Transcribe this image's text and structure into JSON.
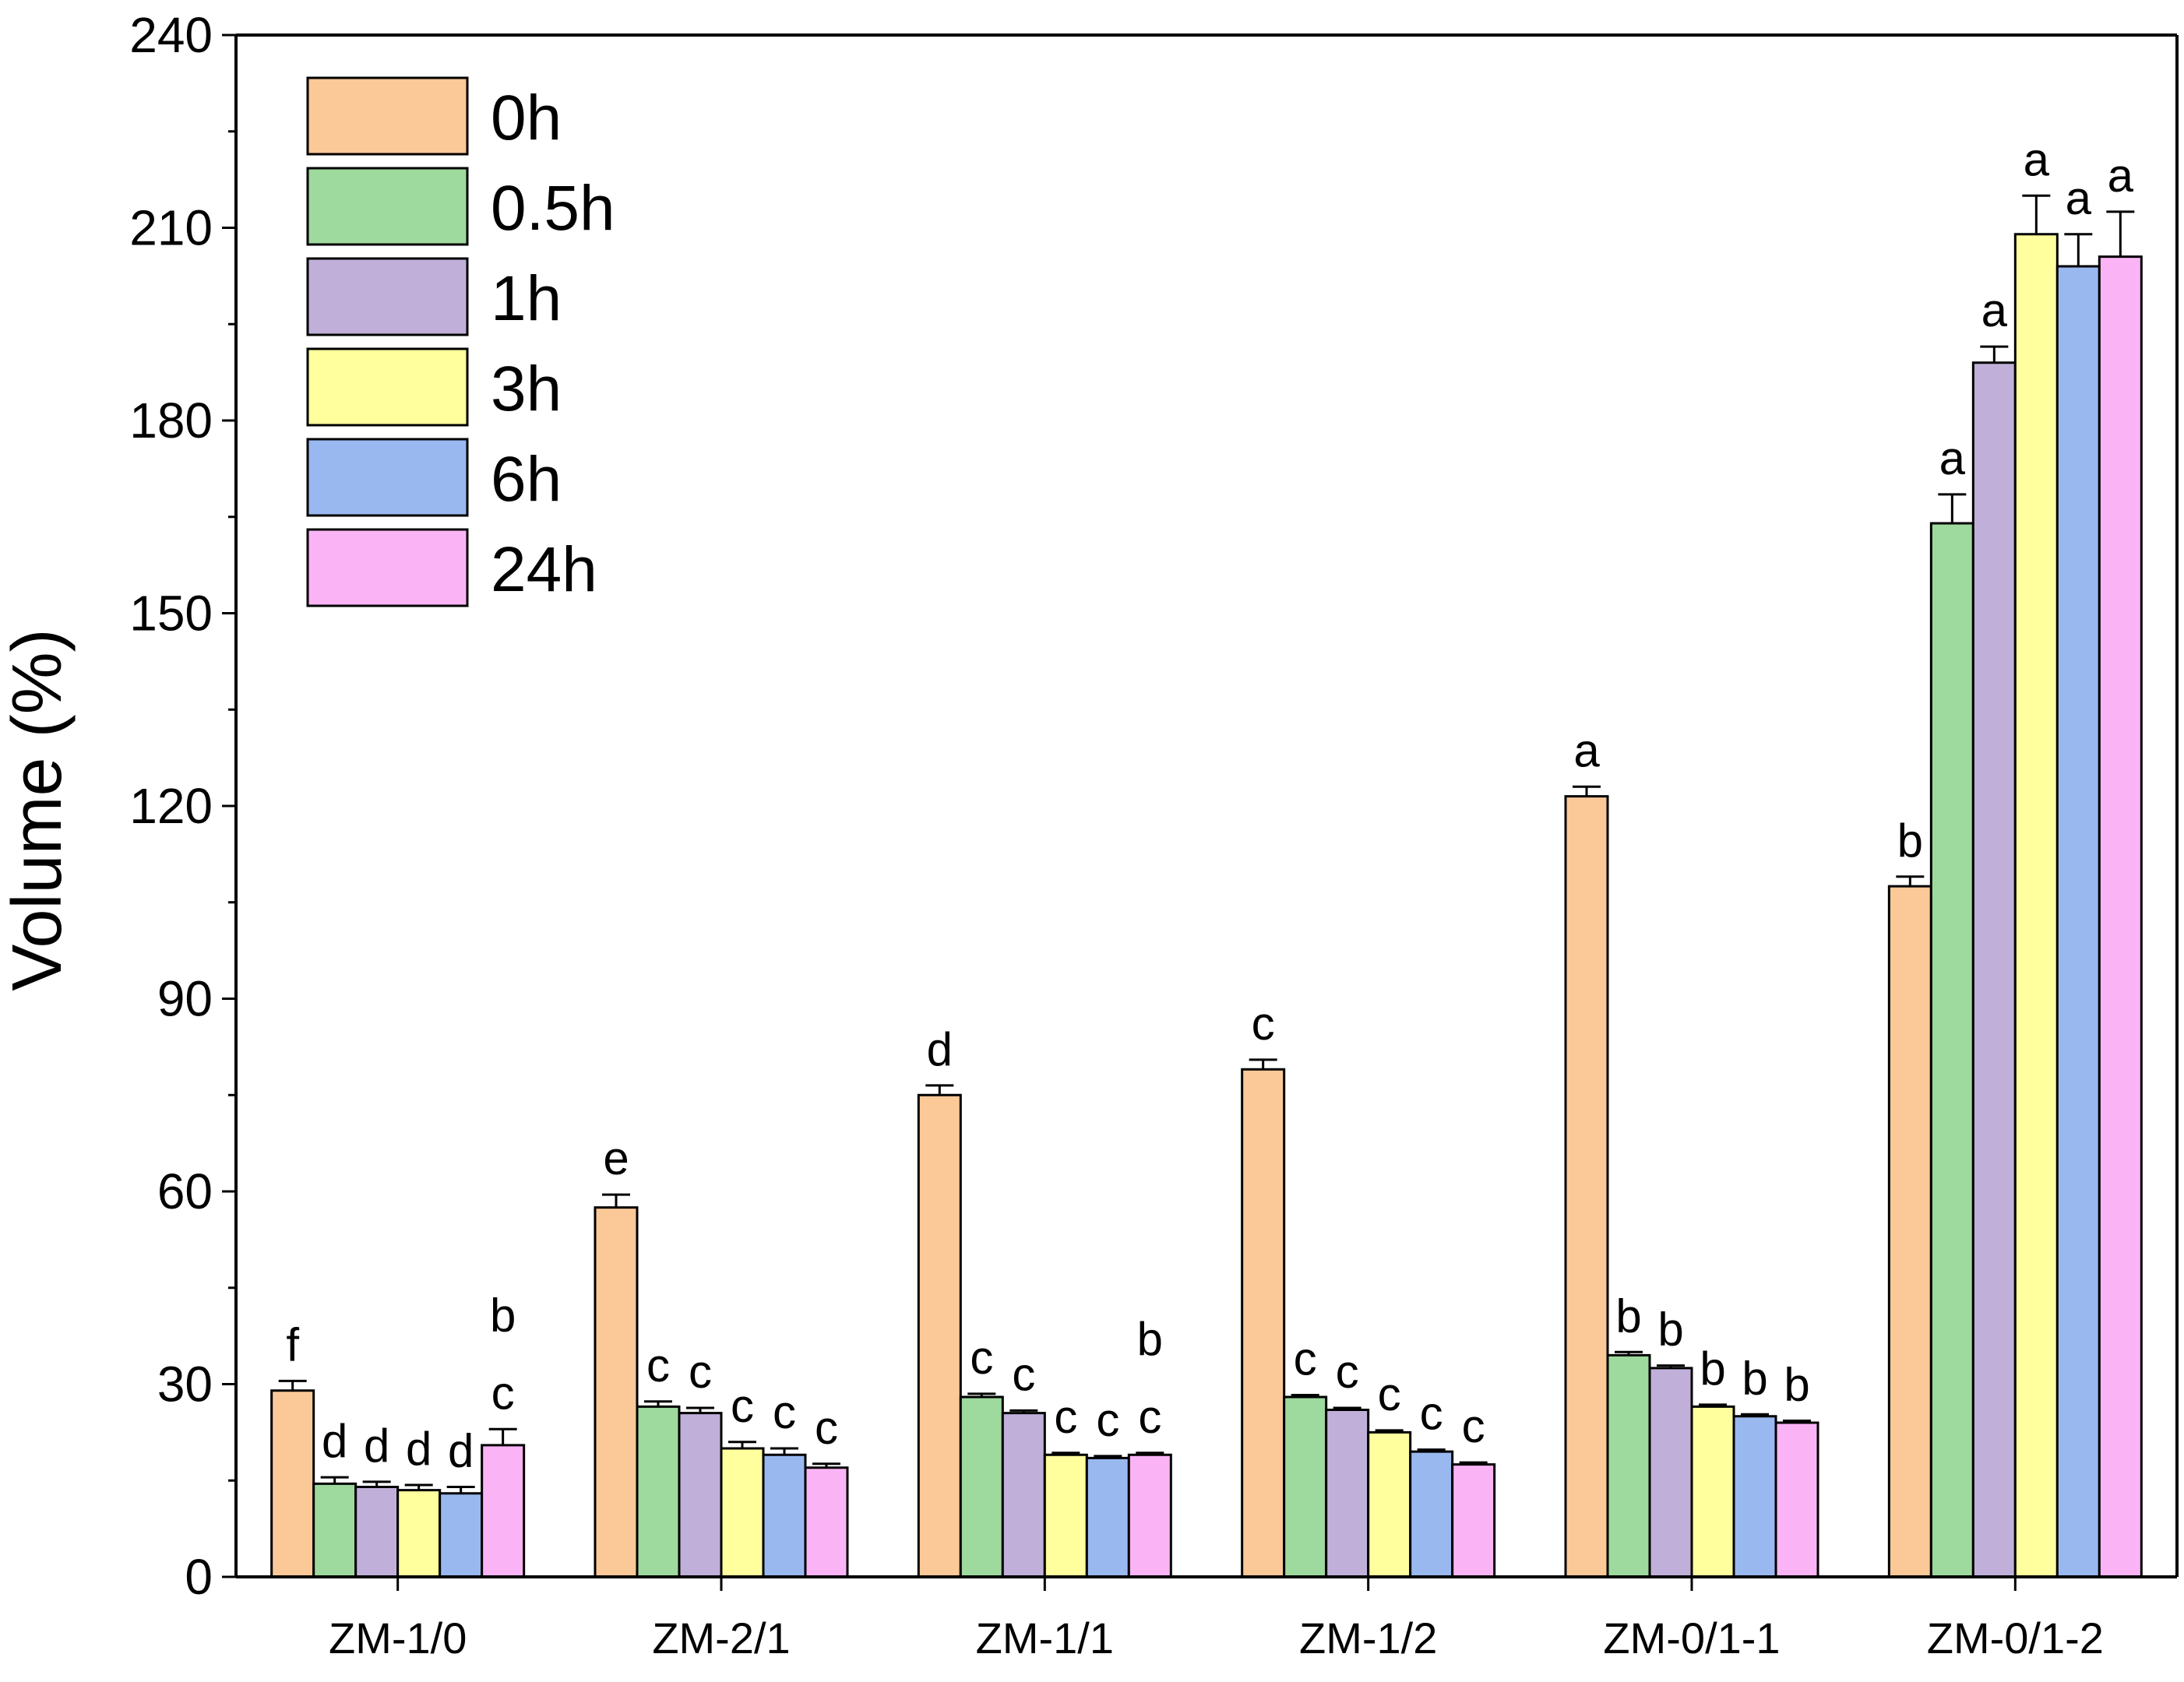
{
  "chart_data": {
    "type": "bar",
    "title": "",
    "xlabel": "",
    "ylabel": "Volume (%)",
    "ylim": [
      0,
      240
    ],
    "yticks": [
      0,
      30,
      60,
      90,
      120,
      150,
      180,
      210,
      240
    ],
    "legend_position": "top-left",
    "categories": [
      "ZM-1/0",
      "ZM-2/1",
      "ZM-1/1",
      "ZM-1/2",
      "ZM-0/1-1",
      "ZM-0/1-2"
    ],
    "series": [
      {
        "name": "0h",
        "color": "#FBC898",
        "values": [
          29,
          57.5,
          75,
          79,
          121.5,
          107.5
        ],
        "errors": [
          1.5,
          2,
          1.5,
          1.5,
          1.5,
          1.5
        ],
        "letters": [
          "f",
          "e",
          "d",
          "c",
          "a",
          "b"
        ]
      },
      {
        "name": "0.5h",
        "color": "#9ED99E",
        "values": [
          14.5,
          26.5,
          28,
          28,
          34.5,
          164
        ],
        "errors": [
          1,
          0.8,
          0.5,
          0.3,
          0.5,
          4.5
        ],
        "letters": [
          "d",
          "c",
          "c",
          "c",
          "b",
          "a"
        ]
      },
      {
        "name": "1h",
        "color": "#C0B0D9",
        "values": [
          14,
          25.5,
          25.5,
          26,
          32.5,
          189
        ],
        "errors": [
          0.8,
          0.8,
          0.4,
          0.3,
          0.4,
          2.5
        ],
        "letters": [
          "d",
          "c",
          "c",
          "c",
          "b",
          "a"
        ]
      },
      {
        "name": "3h",
        "color": "#FFFF9E",
        "values": [
          13.5,
          20,
          19,
          22.5,
          26.5,
          209
        ],
        "errors": [
          0.8,
          1,
          0.3,
          0.3,
          0.3,
          6
        ],
        "letters": [
          "d",
          "c",
          "c",
          "c",
          "b",
          "a"
        ]
      },
      {
        "name": "6h",
        "color": "#9AB8F0",
        "values": [
          13,
          19,
          18.5,
          19.5,
          25,
          204
        ],
        "errors": [
          1,
          1,
          0.3,
          0.3,
          0.3,
          5
        ],
        "letters": [
          "d",
          "c",
          "c",
          "c",
          "b",
          "a"
        ]
      },
      {
        "name": "24h",
        "color": "#FAB4F5",
        "values": [
          20.5,
          17,
          19,
          17.5,
          24,
          205.5
        ],
        "errors": [
          2.5,
          0.6,
          0.3,
          0.3,
          0.3,
          7
        ],
        "letters": [
          "b\nc",
          "c",
          "b\nc",
          "c",
          "b",
          "a"
        ]
      }
    ]
  }
}
